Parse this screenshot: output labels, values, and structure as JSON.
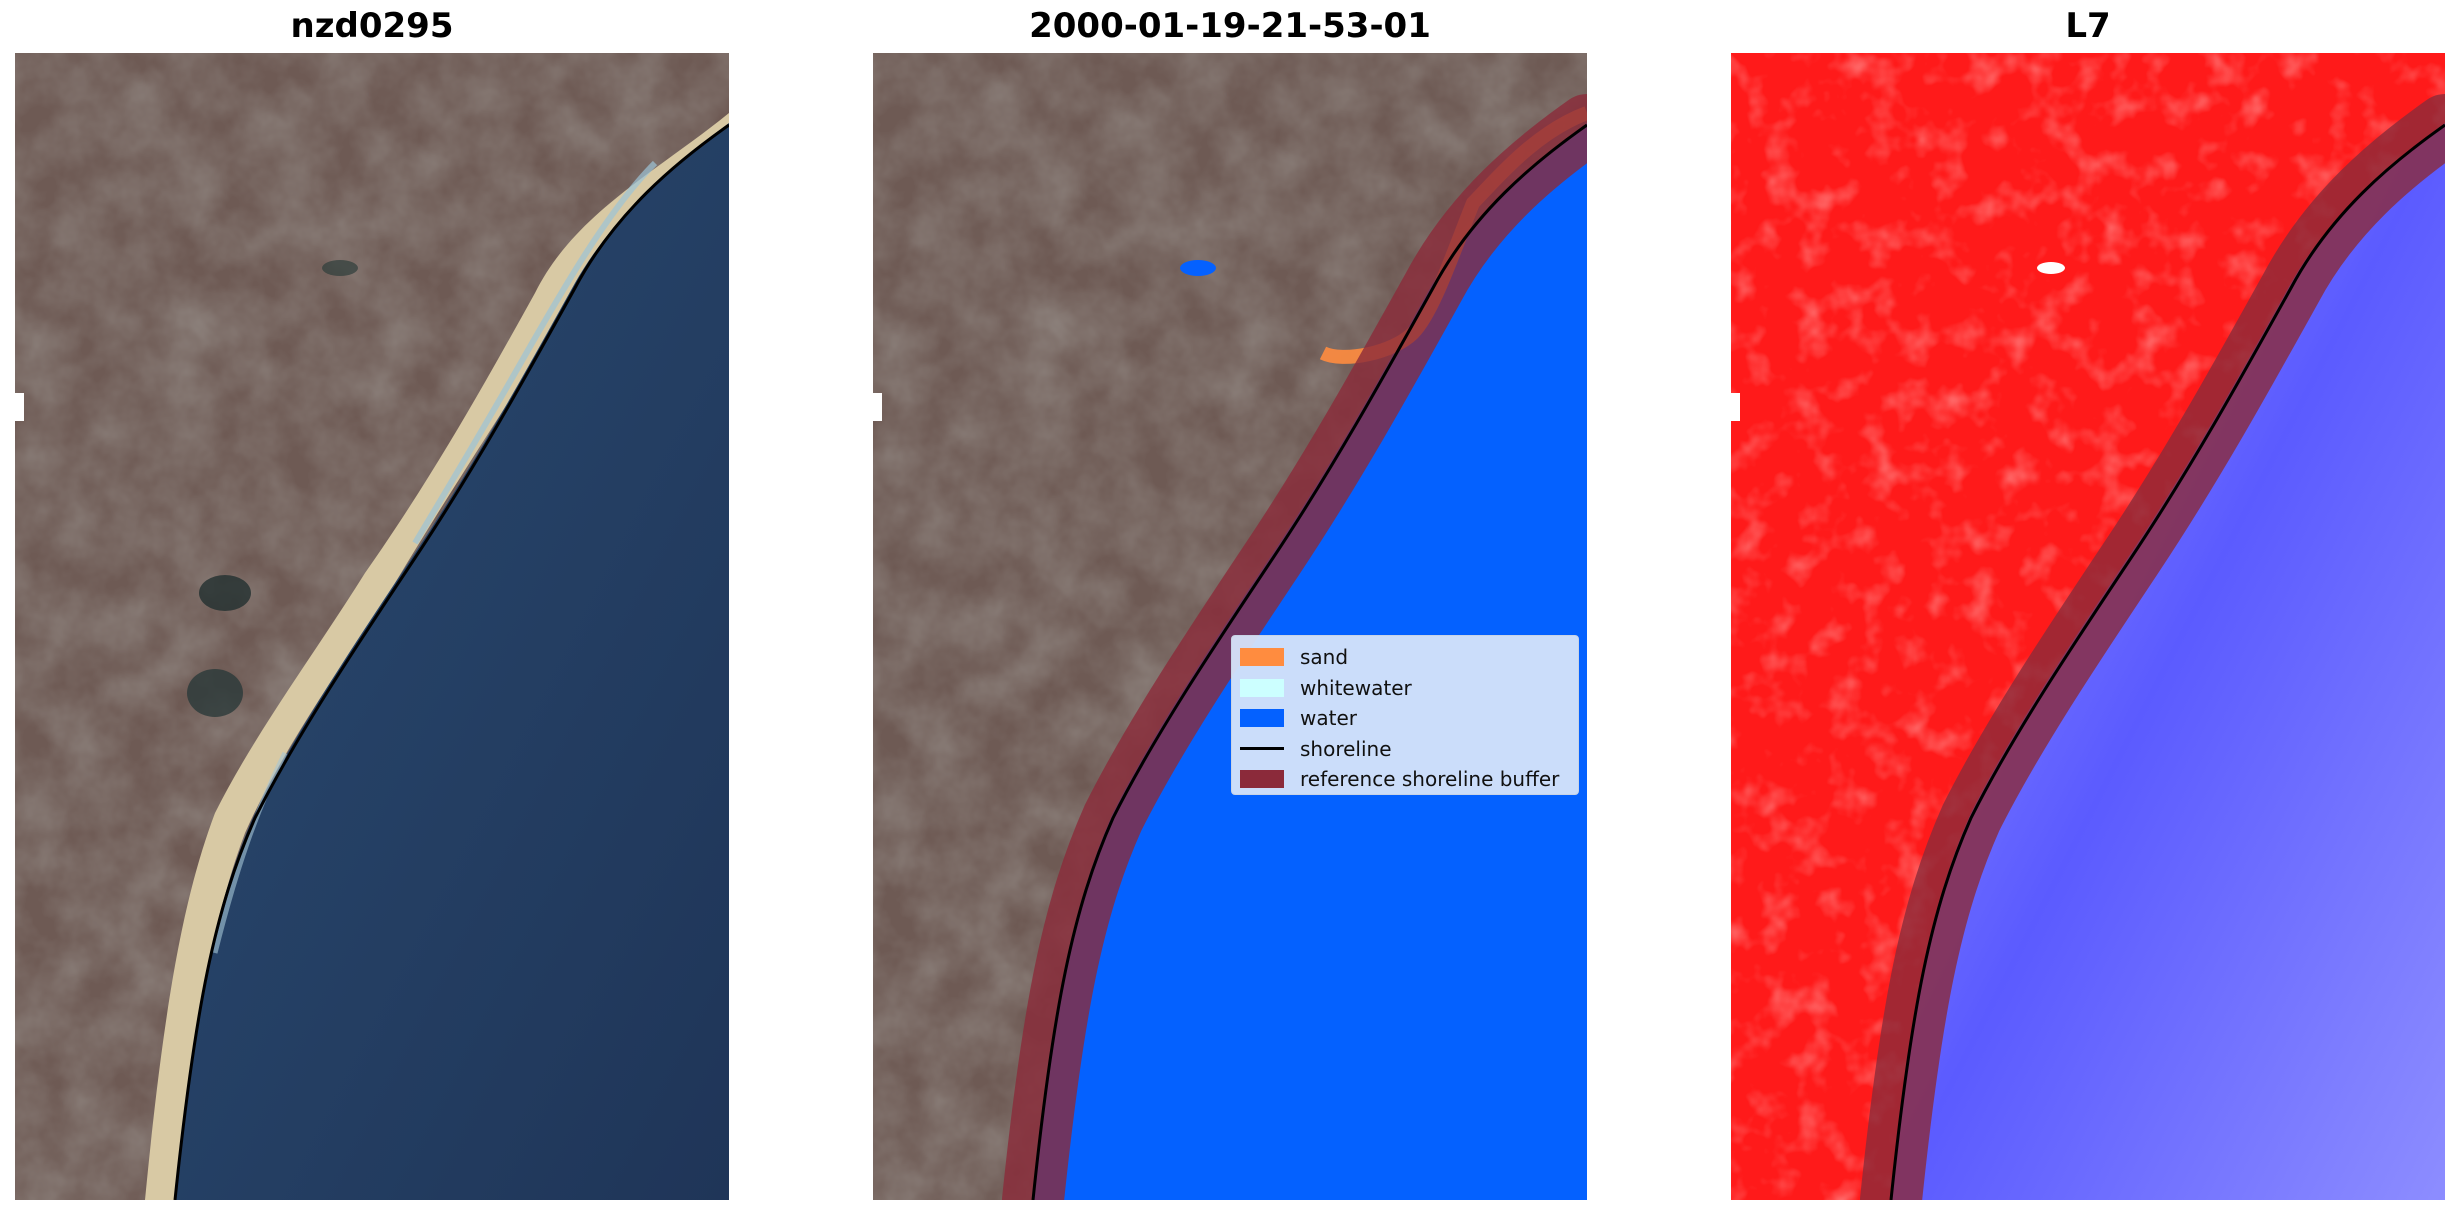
{
  "panels": [
    {
      "title": "nzd0295"
    },
    {
      "title": "2000-01-19-21-53-01"
    },
    {
      "title": "L7"
    }
  ],
  "legend": {
    "items": [
      {
        "label": "sand",
        "color": "#ff8c3f",
        "kind": "patch"
      },
      {
        "label": "whitewater",
        "color": "#ccffff",
        "kind": "patch"
      },
      {
        "label": "water",
        "color": "#0461ff",
        "kind": "patch"
      },
      {
        "label": "shoreline",
        "color": "#000000",
        "kind": "line"
      },
      {
        "label": "reference shoreline buffer",
        "color": "#8b2a3a",
        "kind": "patch"
      }
    ]
  },
  "colors": {
    "land": "#6e5a54",
    "ocean_true_color": "#233c5e",
    "water_class": "#0461ff",
    "sand_class": "#ff8c3f",
    "buffer": "#8b2a3a",
    "index_land": "#ff1a1a",
    "index_water": "#6b6bff"
  }
}
